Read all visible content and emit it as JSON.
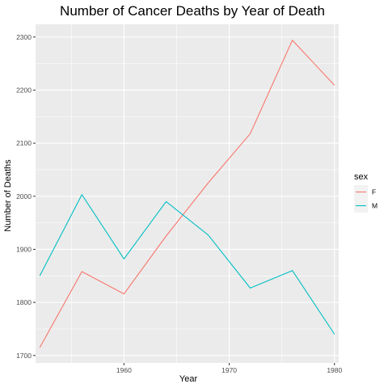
{
  "chart_data": {
    "type": "line",
    "title": "Number of Cancer Deaths by Year of Death",
    "xlabel": "Year",
    "ylabel": "Number of Deaths",
    "x": [
      1952,
      1956,
      1960,
      1964,
      1968,
      1972,
      1976,
      1980
    ],
    "series": [
      {
        "name": "F",
        "color": "#F8766D",
        "values": [
          1715,
          1858,
          1816,
          1925,
          2025,
          2118,
          2294,
          2209
        ]
      },
      {
        "name": "M",
        "color": "#00BFC4",
        "values": [
          1850,
          2003,
          1882,
          1990,
          1927,
          1827,
          1860,
          1740
        ]
      }
    ],
    "xlim": [
      1951.6,
      1980.4
    ],
    "ylim": [
      1686,
      2324
    ],
    "x_ticks": [
      1960,
      1970,
      1980
    ],
    "y_ticks": [
      1700,
      1800,
      1900,
      2000,
      2100,
      2200,
      2300
    ],
    "legend": {
      "title": "sex",
      "position": "right"
    },
    "grid": true,
    "panel_background": "#EBEBEB"
  }
}
